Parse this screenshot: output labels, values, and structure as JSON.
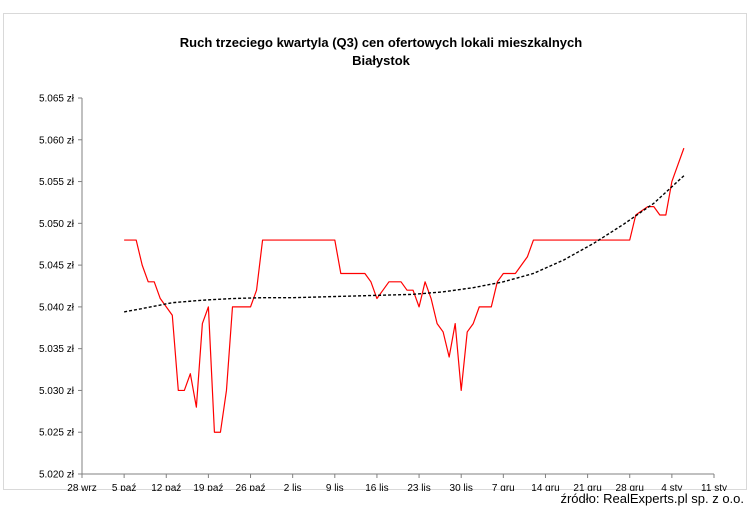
{
  "chart_data": {
    "type": "line",
    "title": "Ruch trzeciego kwartyla (Q3) cen ofertowych lokali mieszkalnych",
    "subtitle": "Białystok",
    "xlabel": "",
    "ylabel": "",
    "grid": false,
    "x_tick_labels": [
      "28 wrz",
      "5 paź",
      "12 paź",
      "19 paź",
      "26 paź",
      "2 lis",
      "9 lis",
      "16 lis",
      "23 lis",
      "30 lis",
      "7 gru",
      "14 gru",
      "21 gru",
      "28 gru",
      "4 sty",
      "11 sty"
    ],
    "y_tick_labels": [
      "5.020 zł",
      "5.025 zł",
      "5.030 zł",
      "5.035 zł",
      "5.040 zł",
      "5.045 zł",
      "5.050 zł",
      "5.055 zł",
      "5.060 zł",
      "5.065 zł"
    ],
    "xlim": [
      0,
      105
    ],
    "ylim": [
      5.02,
      5.065
    ],
    "series": [
      {
        "style": "solid",
        "color": "#ff0000",
        "x": [
          7,
          8,
          9,
          10,
          11,
          12,
          13,
          14,
          15,
          16,
          17,
          18,
          19,
          20,
          21,
          22,
          23,
          24,
          25,
          26,
          27,
          28,
          29,
          30,
          31,
          32,
          33,
          34,
          35,
          36,
          37,
          38,
          39,
          40,
          41,
          42,
          43,
          44,
          45,
          46,
          47,
          48,
          49,
          50,
          51,
          52,
          53,
          54,
          55,
          56,
          57,
          58,
          59,
          60,
          61,
          62,
          63,
          64,
          65,
          66,
          67,
          68,
          69,
          70,
          71,
          72,
          73,
          74,
          75,
          76,
          77,
          78,
          79,
          80,
          81,
          82,
          83,
          84,
          85,
          86,
          87,
          88,
          89,
          90,
          91,
          92,
          93,
          94,
          95,
          96,
          97,
          98,
          99,
          100
        ],
        "y": [
          5.048,
          5.048,
          5.048,
          5.045,
          5.043,
          5.043,
          5.041,
          5.04,
          5.039,
          5.03,
          5.03,
          5.032,
          5.028,
          5.038,
          5.04,
          5.025,
          5.025,
          5.03,
          5.04,
          5.04,
          5.04,
          5.04,
          5.042,
          5.048,
          5.048,
          5.048,
          5.048,
          5.048,
          5.048,
          5.048,
          5.048,
          5.048,
          5.048,
          5.048,
          5.048,
          5.048,
          5.044,
          5.044,
          5.044,
          5.044,
          5.044,
          5.043,
          5.041,
          5.042,
          5.043,
          5.043,
          5.043,
          5.042,
          5.042,
          5.04,
          5.043,
          5.041,
          5.038,
          5.037,
          5.034,
          5.038,
          5.03,
          5.037,
          5.038,
          5.04,
          5.04,
          5.04,
          5.043,
          5.044,
          5.044,
          5.044,
          5.045,
          5.046,
          5.048,
          5.048,
          5.048,
          5.048,
          5.048,
          5.048,
          5.048,
          5.048,
          5.048,
          5.048,
          5.048,
          5.048,
          5.048,
          5.048,
          5.048,
          5.048,
          5.048,
          5.051,
          5.0515,
          5.052,
          5.052,
          5.051,
          5.051,
          5.055,
          5.057,
          5.059
        ]
      },
      {
        "style": "dotted",
        "color": "#000000",
        "x": [
          7,
          10,
          15,
          20,
          25,
          30,
          35,
          40,
          45,
          50,
          55,
          60,
          65,
          70,
          75,
          80,
          85,
          90,
          95,
          100
        ],
        "y": [
          5.0394,
          5.0398,
          5.0405,
          5.0408,
          5.041,
          5.0411,
          5.0411,
          5.0412,
          5.0413,
          5.0414,
          5.0415,
          5.0418,
          5.0423,
          5.043,
          5.044,
          5.0456,
          5.0476,
          5.0499,
          5.0524,
          5.0557
        ]
      }
    ]
  },
  "source_text": "źródło: RealExperts.pl sp. z o.o."
}
